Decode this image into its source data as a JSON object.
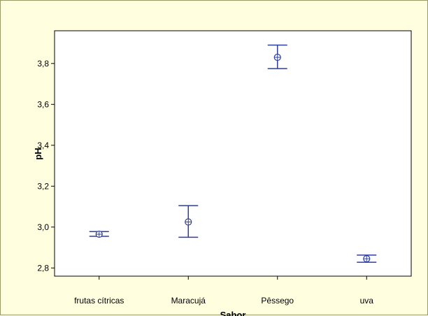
{
  "chart_data": {
    "type": "errorbar",
    "xlabel": "Sabor",
    "ylabel": "pH",
    "categories": [
      "frutas cítricas",
      "Maracujá",
      "Pêssego",
      "uva"
    ],
    "series": [
      {
        "mean": [
          2.965,
          3.025,
          3.83,
          2.845
        ],
        "lower": [
          2.955,
          2.95,
          3.775,
          2.828
        ],
        "upper": [
          2.978,
          3.105,
          3.89,
          2.863
        ]
      }
    ],
    "yticks": [
      2.8,
      3.0,
      3.2,
      3.4,
      3.6,
      3.8
    ],
    "ytick_labels": [
      "2,8",
      "3,0",
      "3,2",
      "3,4",
      "3,6",
      "3,8"
    ],
    "ylim": [
      2.76,
      3.96
    ],
    "grid": false,
    "colors": {
      "marks": "#2e3f9e",
      "background": "#ffffe0",
      "plot_area": "#ffffff"
    }
  }
}
